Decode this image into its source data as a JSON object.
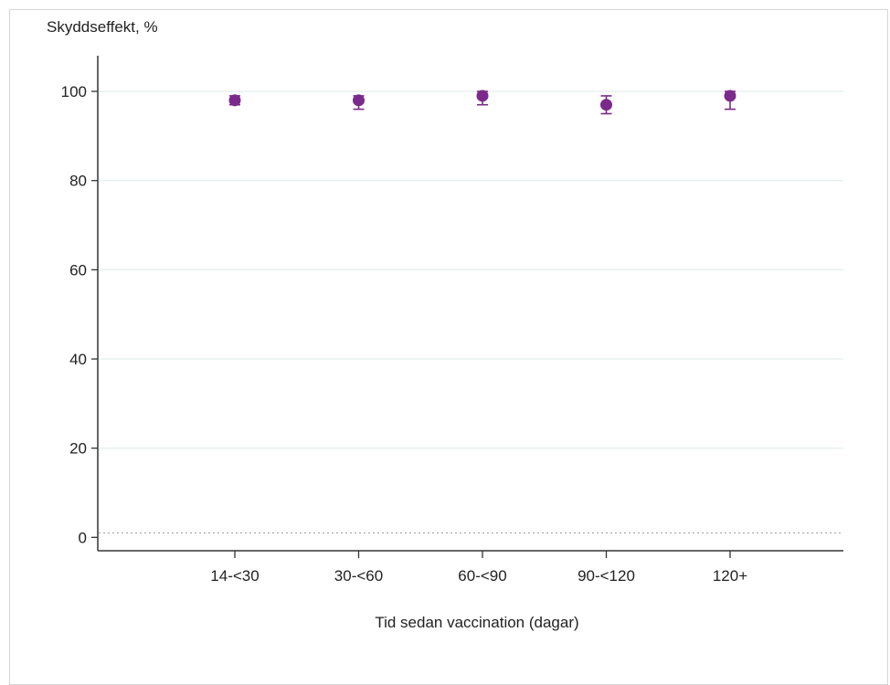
{
  "chart_data": {
    "type": "scatter",
    "ylabel": "Skyddseffekt, %",
    "xlabel": "Tid sedan vaccination (dagar)",
    "categories": [
      "14-<30",
      "30-<60",
      "60-<90",
      "90-<120",
      "120+"
    ],
    "values": [
      98,
      98,
      99,
      97,
      99
    ],
    "ci_lower": [
      97,
      96,
      97,
      95,
      96
    ],
    "ci_upper": [
      99,
      99,
      100,
      99,
      100
    ],
    "ylim": [
      -3,
      108
    ],
    "yticks": [
      0,
      20,
      40,
      60,
      80,
      100
    ],
    "grid": true,
    "reference_line": 1,
    "colors": {
      "marker": "#7b2a8c",
      "grid": "#e3eeee",
      "axis": "#333333"
    }
  }
}
